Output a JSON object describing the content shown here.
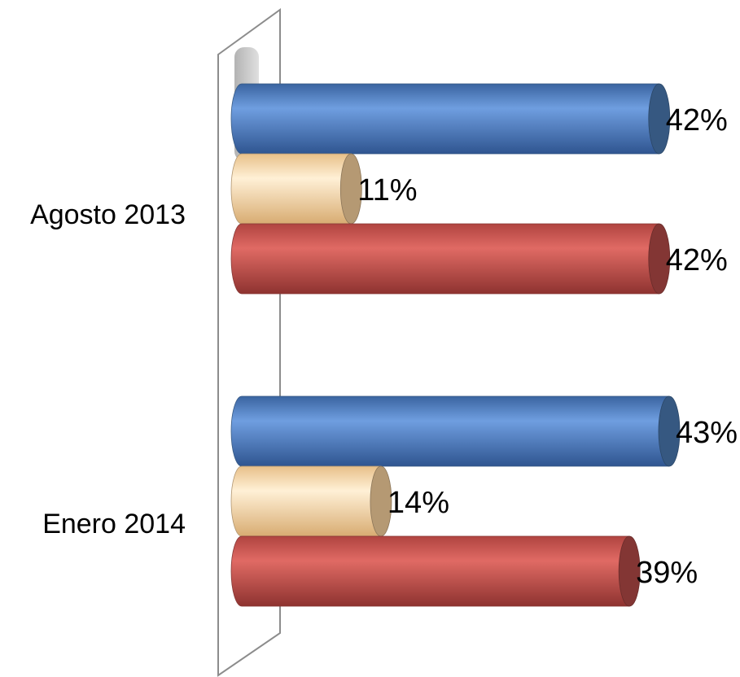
{
  "chart_data": {
    "type": "bar",
    "orientation": "horizontal",
    "style": "3d-cylinder",
    "categories": [
      "Agosto 2013",
      "Enero 2014"
    ],
    "series": [
      {
        "values": [
          42,
          43
        ],
        "labels": [
          "42%",
          "43%"
        ],
        "color": "#4f81bd"
      },
      {
        "values": [
          11,
          14
        ],
        "labels": [
          "11%",
          "14%"
        ],
        "color": "#fcd5a0"
      },
      {
        "values": [
          42,
          39
        ],
        "labels": [
          "42%",
          "39%"
        ],
        "color": "#c0504d"
      }
    ],
    "value_unit": "%",
    "xlim": [
      0,
      43
    ],
    "grid": false,
    "legend": "none"
  }
}
